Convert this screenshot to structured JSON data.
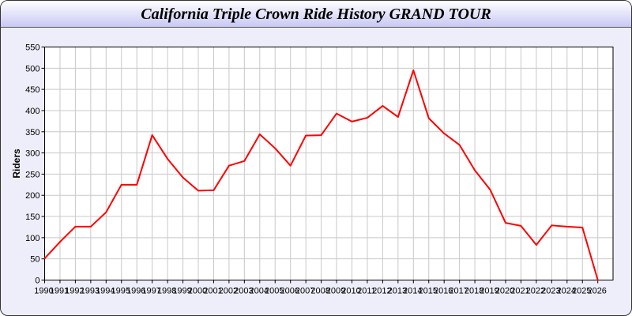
{
  "chart_data": {
    "type": "line",
    "title": "California Triple Crown Ride History GRAND TOUR",
    "xlabel": "",
    "ylabel": "Riders",
    "xlim": [
      1990,
      2027
    ],
    "ylim": [
      0,
      550
    ],
    "yticks": [
      0,
      50,
      100,
      150,
      200,
      250,
      300,
      350,
      400,
      450,
      500,
      550
    ],
    "grid": true,
    "line_color": "#ff0000",
    "x": [
      1990,
      1991,
      1992,
      1993,
      1994,
      1995,
      1996,
      1997,
      1998,
      1999,
      2000,
      2001,
      2002,
      2003,
      2004,
      2005,
      2006,
      2007,
      2008,
      2009,
      2010,
      2011,
      2012,
      2013,
      2014,
      2015,
      2016,
      2017,
      2018,
      2019,
      2020,
      2021,
      2022,
      2023,
      2024,
      2025,
      2026
    ],
    "values": [
      51,
      90,
      126,
      126,
      160,
      225,
      225,
      342,
      286,
      242,
      211,
      212,
      270,
      281,
      344,
      311,
      270,
      341,
      342,
      393,
      374,
      383,
      411,
      385,
      495,
      382,
      346,
      319,
      259,
      213,
      135,
      128,
      83,
      129,
      126,
      124,
      0
    ]
  }
}
